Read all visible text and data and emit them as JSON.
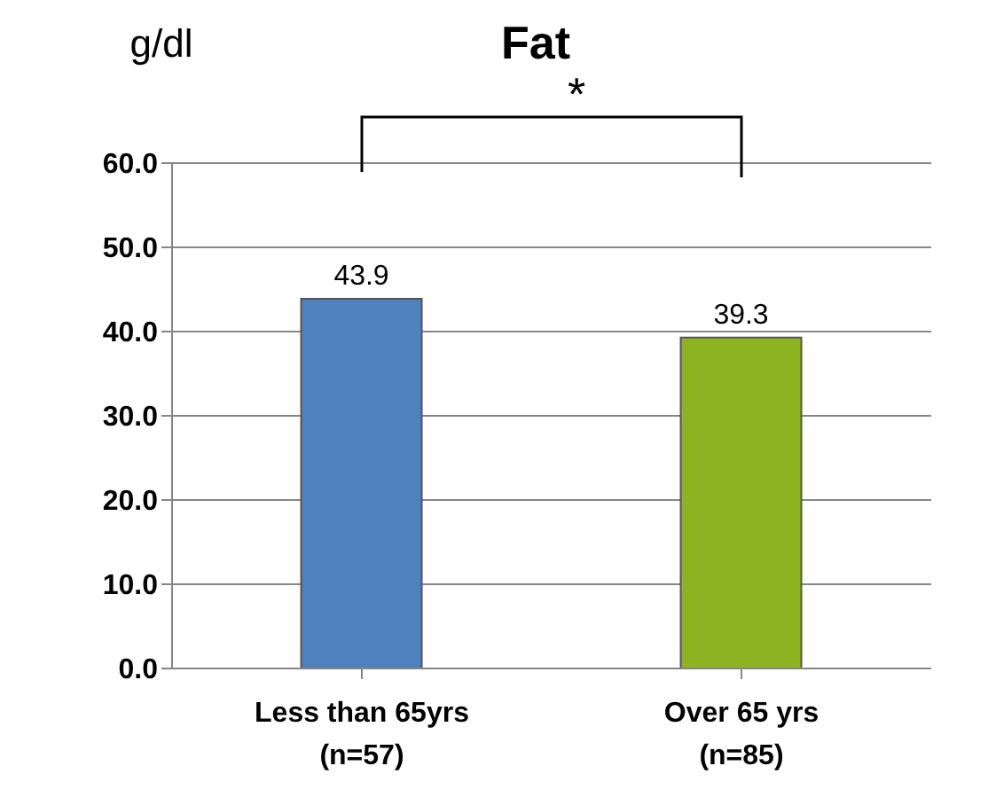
{
  "chart_data": {
    "type": "bar",
    "title": "Fat",
    "ylabel": "g/dl",
    "categories": [
      "Less than 65yrs\n(n=57)",
      "Over 65 yrs\n(n=85)"
    ],
    "values": [
      43.9,
      39.3
    ],
    "colors": [
      "#4f81bd",
      "#8db322"
    ],
    "ylim": [
      0,
      60
    ],
    "yticks": [
      {
        "value": 0,
        "label": "0.0"
      },
      {
        "value": 10,
        "label": "10.0"
      },
      {
        "value": 20,
        "label": "20.0"
      },
      {
        "value": 30,
        "label": "30.0"
      },
      {
        "value": 40,
        "label": "40.0"
      },
      {
        "value": 50,
        "label": "50.0"
      },
      {
        "value": 60,
        "label": "60.0"
      }
    ],
    "grid": "y",
    "data_labels": true,
    "legend": false,
    "annotations": [
      "*"
    ]
  }
}
